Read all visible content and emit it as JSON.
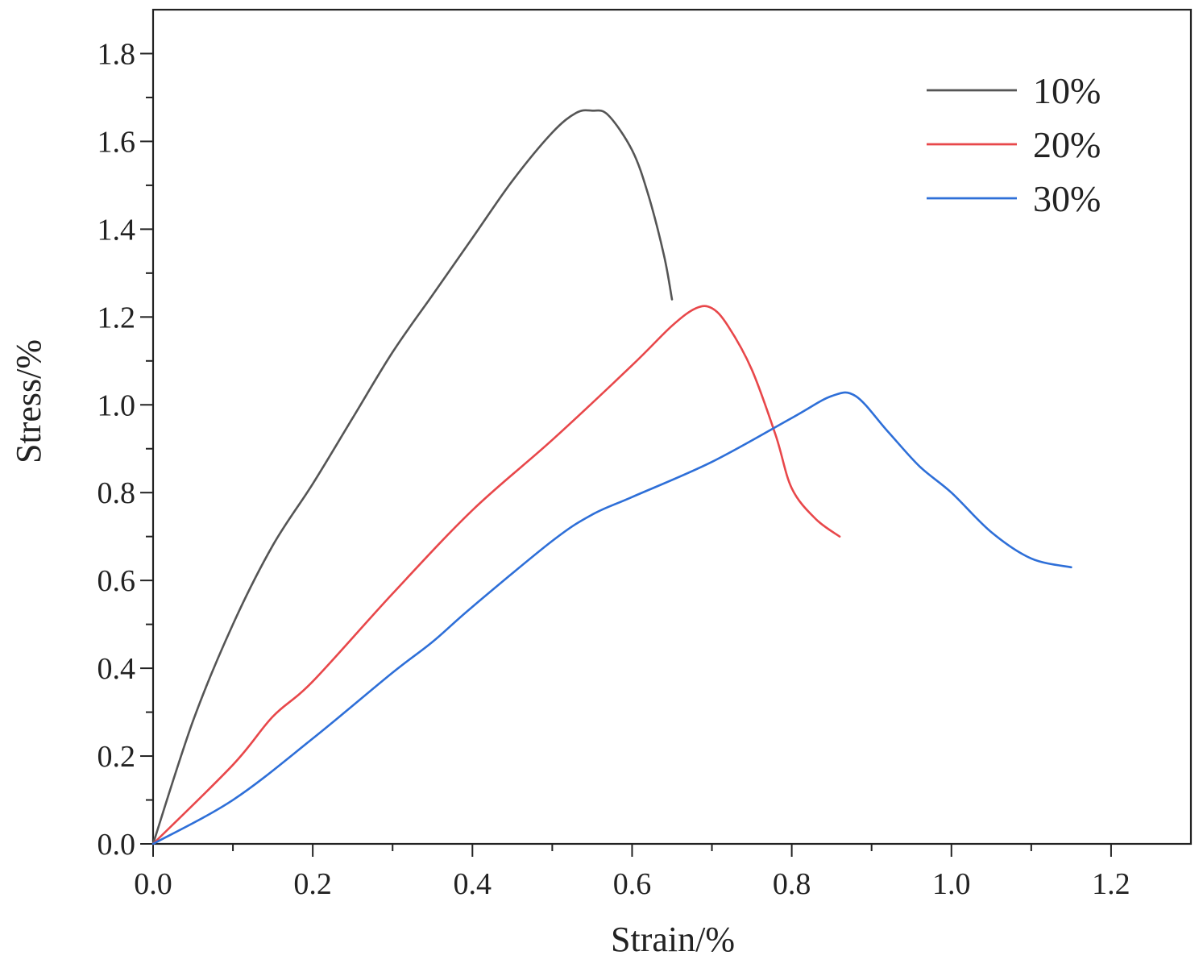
{
  "chart_data": {
    "type": "line",
    "xlabel": "Strain/%",
    "ylabel": "Stress/%",
    "xlim": [
      0,
      1.3
    ],
    "ylim": [
      0,
      1.9
    ],
    "xticks": [
      0.0,
      0.2,
      0.4,
      0.6,
      0.8,
      1.0,
      1.2
    ],
    "yticks": [
      0.0,
      0.2,
      0.4,
      0.6,
      0.8,
      1.0,
      1.2,
      1.4,
      1.6,
      1.8
    ],
    "xtick_labels": [
      "0.0",
      "0.2",
      "0.4",
      "0.6",
      "0.8",
      "1.0",
      "1.2"
    ],
    "ytick_labels": [
      "0.0",
      "0.2",
      "0.4",
      "0.6",
      "0.8",
      "1.0",
      "1.2",
      "1.4",
      "1.6",
      "1.8"
    ],
    "grid": false,
    "legend_position": "top-right",
    "series": [
      {
        "name": "10%",
        "color": "#555555",
        "x": [
          0.0,
          0.05,
          0.1,
          0.15,
          0.2,
          0.25,
          0.3,
          0.35,
          0.4,
          0.45,
          0.5,
          0.53,
          0.55,
          0.57,
          0.6,
          0.62,
          0.64,
          0.65
        ],
        "y": [
          0.0,
          0.28,
          0.5,
          0.68,
          0.82,
          0.97,
          1.12,
          1.25,
          1.38,
          1.51,
          1.62,
          1.665,
          1.67,
          1.66,
          1.58,
          1.48,
          1.34,
          1.24
        ]
      },
      {
        "name": "20%",
        "color": "#e8474a",
        "x": [
          0.0,
          0.1,
          0.15,
          0.2,
          0.3,
          0.4,
          0.5,
          0.6,
          0.65,
          0.68,
          0.7,
          0.72,
          0.75,
          0.78,
          0.8,
          0.83,
          0.86
        ],
        "y": [
          0.0,
          0.18,
          0.29,
          0.37,
          0.57,
          0.76,
          0.92,
          1.09,
          1.18,
          1.22,
          1.22,
          1.18,
          1.08,
          0.93,
          0.81,
          0.74,
          0.7
        ]
      },
      {
        "name": "30%",
        "color": "#2e6fd8",
        "x": [
          0.0,
          0.1,
          0.2,
          0.3,
          0.35,
          0.4,
          0.5,
          0.55,
          0.6,
          0.7,
          0.8,
          0.85,
          0.88,
          0.92,
          0.96,
          1.0,
          1.05,
          1.1,
          1.15
        ],
        "y": [
          0.0,
          0.1,
          0.24,
          0.39,
          0.46,
          0.54,
          0.69,
          0.75,
          0.79,
          0.87,
          0.97,
          1.02,
          1.02,
          0.94,
          0.86,
          0.8,
          0.71,
          0.65,
          0.63
        ]
      }
    ]
  }
}
